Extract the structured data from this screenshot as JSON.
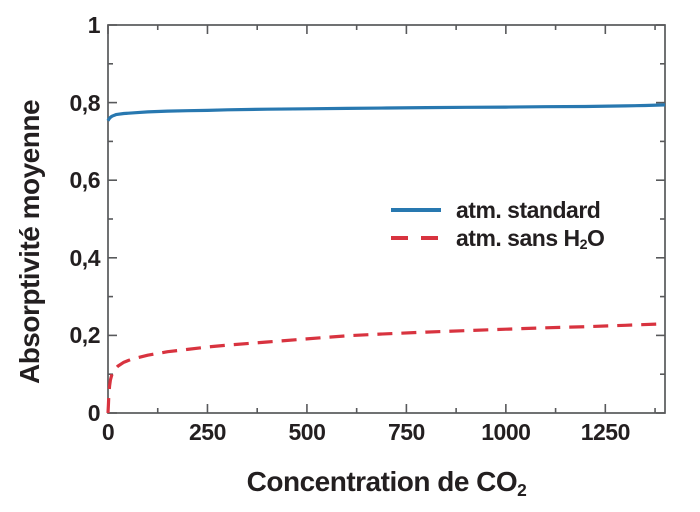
{
  "figure": {
    "background": "#ffffff",
    "axis_color": "#58595b",
    "text_color": "#231f20"
  },
  "chart_data": {
    "type": "line",
    "title": "",
    "xlabel": "Concentration de CO₂",
    "xlabel_main": "Concentration de CO",
    "xlabel_sub": "2",
    "ylabel": "Absorptivité moyenne",
    "xlim": [
      0,
      1400
    ],
    "ylim": [
      0,
      1
    ],
    "x_major_ticks": [
      0,
      250,
      500,
      750,
      1000,
      1250
    ],
    "x_tick_labels": [
      "0",
      "250",
      "500",
      "750",
      "1000",
      "1250"
    ],
    "x_minor_ticks": [
      125,
      375,
      625,
      875,
      1125,
      1375
    ],
    "y_major_ticks": [
      0,
      0.2,
      0.4,
      0.6,
      0.8,
      1
    ],
    "y_tick_labels": [
      "0",
      "0,2",
      "0,4",
      "0,6",
      "0,8",
      "1"
    ],
    "y_minor_ticks": [
      0.1,
      0.3,
      0.5,
      0.7,
      0.9
    ],
    "grid": false,
    "legend_position": "inside center-right",
    "series": [
      {
        "name": "atm. standard",
        "color": "#2878b0",
        "style": "solid",
        "points": [
          [
            0,
            0.753
          ],
          [
            2,
            0.757
          ],
          [
            5,
            0.761
          ],
          [
            10,
            0.765
          ],
          [
            20,
            0.769
          ],
          [
            40,
            0.772
          ],
          [
            70,
            0.774
          ],
          [
            100,
            0.776
          ],
          [
            150,
            0.778
          ],
          [
            200,
            0.779
          ],
          [
            250,
            0.78
          ],
          [
            300,
            0.7815
          ],
          [
            400,
            0.783
          ],
          [
            500,
            0.784
          ],
          [
            600,
            0.785
          ],
          [
            700,
            0.786
          ],
          [
            800,
            0.787
          ],
          [
            900,
            0.788
          ],
          [
            1000,
            0.7885
          ],
          [
            1100,
            0.7895
          ],
          [
            1200,
            0.79
          ],
          [
            1300,
            0.7915
          ],
          [
            1350,
            0.7925
          ],
          [
            1400,
            0.794
          ]
        ]
      },
      {
        "name": "atm. sans H₂O",
        "color": "#d8333f",
        "style": "dashed",
        "points": [
          [
            0,
            0
          ],
          [
            1,
            0.02
          ],
          [
            2,
            0.045
          ],
          [
            4,
            0.07
          ],
          [
            6,
            0.085
          ],
          [
            10,
            0.1
          ],
          [
            15,
            0.11
          ],
          [
            25,
            0.121
          ],
          [
            40,
            0.131
          ],
          [
            60,
            0.139
          ],
          [
            100,
            0.149
          ],
          [
            150,
            0.158
          ],
          [
            200,
            0.164
          ],
          [
            250,
            0.17
          ],
          [
            300,
            0.175
          ],
          [
            400,
            0.183
          ],
          [
            500,
            0.191
          ],
          [
            600,
            0.199
          ],
          [
            700,
            0.204
          ],
          [
            800,
            0.2085
          ],
          [
            900,
            0.2125
          ],
          [
            1000,
            0.216
          ],
          [
            1100,
            0.2195
          ],
          [
            1200,
            0.2225
          ],
          [
            1300,
            0.226
          ],
          [
            1400,
            0.23
          ]
        ]
      }
    ]
  },
  "legend": {
    "items": [
      {
        "label_main": "atm. standard",
        "label_sub": "",
        "label_end": "",
        "color": "#2878b0",
        "style": "solid"
      },
      {
        "label_main": "atm. sans H",
        "label_sub": "2",
        "label_end": "O",
        "color": "#d8333f",
        "style": "dashed"
      }
    ]
  }
}
